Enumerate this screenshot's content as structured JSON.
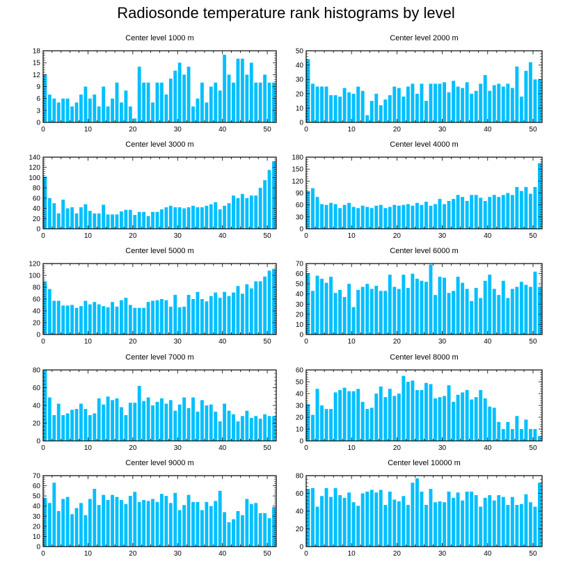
{
  "figure": {
    "title": "Radiosonde temperature rank histograms by level",
    "bar_color": "#00bfff"
  },
  "chart_data": [
    {
      "type": "bar",
      "title": "Center level 1000 m",
      "x": [
        0,
        1,
        2,
        3,
        4,
        5,
        6,
        7,
        8,
        9,
        10,
        11,
        12,
        13,
        14,
        15,
        16,
        17,
        18,
        19,
        20,
        21,
        22,
        23,
        24,
        25,
        26,
        27,
        28,
        29,
        30,
        31,
        32,
        33,
        34,
        35,
        36,
        37,
        38,
        39,
        40,
        41,
        42,
        43,
        44,
        45,
        46,
        47,
        48,
        49,
        50,
        51
      ],
      "values": [
        12,
        7,
        6,
        5,
        6,
        6,
        4,
        5,
        7,
        9,
        6,
        7,
        4,
        9,
        4,
        6,
        10,
        5,
        8,
        4,
        1,
        14,
        10,
        10,
        5,
        10,
        10,
        7,
        11,
        13,
        15,
        12,
        14,
        4,
        6,
        10,
        5,
        9,
        10,
        8,
        17,
        12,
        10,
        16,
        16,
        12,
        15,
        10,
        10,
        12,
        10,
        10
      ],
      "xlim": [
        0,
        52
      ],
      "ylim": [
        0,
        18
      ],
      "xticks": [
        0,
        10,
        20,
        30,
        40,
        50
      ],
      "yticks": [
        0,
        3,
        6,
        9,
        12,
        15,
        18
      ],
      "ytick_side": "left"
    },
    {
      "type": "bar",
      "title": "Center level 2000 m",
      "x": [
        0,
        1,
        2,
        3,
        4,
        5,
        6,
        7,
        8,
        9,
        10,
        11,
        12,
        13,
        14,
        15,
        16,
        17,
        18,
        19,
        20,
        21,
        22,
        23,
        24,
        25,
        26,
        27,
        28,
        29,
        30,
        31,
        32,
        33,
        34,
        35,
        36,
        37,
        38,
        39,
        40,
        41,
        42,
        43,
        44,
        45,
        46,
        47,
        48,
        49,
        50,
        51
      ],
      "values": [
        44,
        27,
        25,
        25,
        25,
        19,
        19,
        18,
        24,
        21,
        20,
        25,
        22,
        5,
        15,
        20,
        12,
        16,
        19,
        25,
        24,
        18,
        25,
        27,
        20,
        27,
        15,
        27,
        27,
        27,
        28,
        21,
        29,
        25,
        24,
        28,
        20,
        22,
        27,
        33,
        22,
        26,
        27,
        25,
        27,
        24,
        39,
        18,
        36,
        42,
        30,
        30
      ],
      "xlim": [
        0,
        52
      ],
      "ylim": [
        0,
        50
      ],
      "xticks": [
        0,
        10,
        20,
        30,
        40,
        50
      ],
      "yticks": [
        0,
        10,
        20,
        30,
        40,
        50
      ],
      "ytick_side": "left"
    },
    {
      "type": "bar",
      "title": "Center level 3000 m",
      "x": [
        0,
        1,
        2,
        3,
        4,
        5,
        6,
        7,
        8,
        9,
        10,
        11,
        12,
        13,
        14,
        15,
        16,
        17,
        18,
        19,
        20,
        21,
        22,
        23,
        24,
        25,
        26,
        27,
        28,
        29,
        30,
        31,
        32,
        33,
        34,
        35,
        36,
        37,
        38,
        39,
        40,
        41,
        42,
        43,
        44,
        45,
        46,
        47,
        48,
        49,
        50,
        51
      ],
      "values": [
        102,
        60,
        50,
        30,
        57,
        40,
        42,
        30,
        42,
        48,
        35,
        30,
        30,
        47,
        28,
        28,
        28,
        34,
        37,
        37,
        27,
        33,
        33,
        25,
        33,
        33,
        38,
        42,
        45,
        42,
        42,
        40,
        42,
        45,
        42,
        42,
        45,
        48,
        52,
        38,
        45,
        50,
        65,
        60,
        68,
        60,
        65,
        65,
        80,
        95,
        115,
        132
      ],
      "xlim": [
        0,
        52
      ],
      "ylim": [
        0,
        140
      ],
      "xticks": [
        0,
        10,
        20,
        30,
        40,
        50
      ],
      "yticks": [
        0,
        20,
        40,
        60,
        80,
        100,
        120,
        140
      ],
      "ytick_side": "left"
    },
    {
      "type": "bar",
      "title": "Center level 4000 m",
      "x": [
        0,
        1,
        2,
        3,
        4,
        5,
        6,
        7,
        8,
        9,
        10,
        11,
        12,
        13,
        14,
        15,
        16,
        17,
        18,
        19,
        20,
        21,
        22,
        23,
        24,
        25,
        26,
        27,
        28,
        29,
        30,
        31,
        32,
        33,
        34,
        35,
        36,
        37,
        38,
        39,
        40,
        41,
        42,
        43,
        44,
        45,
        46,
        47,
        48,
        49,
        50,
        51
      ],
      "values": [
        95,
        102,
        80,
        62,
        60,
        65,
        62,
        52,
        60,
        65,
        55,
        52,
        58,
        55,
        52,
        58,
        60,
        52,
        55,
        60,
        58,
        60,
        62,
        58,
        65,
        60,
        68,
        58,
        62,
        75,
        62,
        70,
        75,
        85,
        80,
        70,
        85,
        85,
        78,
        70,
        80,
        85,
        80,
        85,
        90,
        85,
        105,
        95,
        105,
        88,
        105,
        165
      ],
      "xlim": [
        0,
        52
      ],
      "ylim": [
        0,
        180
      ],
      "xticks": [
        0,
        10,
        20,
        30,
        40,
        50
      ],
      "yticks": [
        0,
        30,
        60,
        90,
        120,
        150,
        180
      ],
      "ytick_side": "left"
    },
    {
      "type": "bar",
      "title": "Center level 5000 m",
      "x": [
        0,
        1,
        2,
        3,
        4,
        5,
        6,
        7,
        8,
        9,
        10,
        11,
        12,
        13,
        14,
        15,
        16,
        17,
        18,
        19,
        20,
        21,
        22,
        23,
        24,
        25,
        26,
        27,
        28,
        29,
        30,
        31,
        32,
        33,
        34,
        35,
        36,
        37,
        38,
        39,
        40,
        41,
        42,
        43,
        44,
        45,
        46,
        47,
        48,
        49,
        50,
        51
      ],
      "values": [
        90,
        77,
        57,
        57,
        49,
        49,
        50,
        45,
        48,
        57,
        51,
        55,
        51,
        48,
        46,
        55,
        47,
        58,
        62,
        50,
        45,
        45,
        45,
        55,
        57,
        58,
        60,
        58,
        47,
        67,
        46,
        47,
        67,
        60,
        72,
        60,
        56,
        65,
        71,
        62,
        72,
        65,
        71,
        82,
        69,
        85,
        78,
        90,
        90,
        98,
        108,
        111
      ],
      "xlim": [
        0,
        52
      ],
      "ylim": [
        0,
        120
      ],
      "xticks": [
        0,
        10,
        20,
        30,
        40,
        50
      ],
      "yticks": [
        0,
        20,
        40,
        60,
        80,
        100,
        120
      ],
      "ytick_side": "left"
    },
    {
      "type": "bar",
      "title": "Center level 6000 m",
      "x": [
        0,
        1,
        2,
        3,
        4,
        5,
        6,
        7,
        8,
        9,
        10,
        11,
        12,
        13,
        14,
        15,
        16,
        17,
        18,
        19,
        20,
        21,
        22,
        23,
        24,
        25,
        26,
        27,
        28,
        29,
        30,
        31,
        32,
        33,
        34,
        35,
        36,
        37,
        38,
        39,
        40,
        41,
        42,
        43,
        44,
        45,
        46,
        47,
        48,
        49,
        50,
        51
      ],
      "values": [
        60,
        43,
        58,
        55,
        51,
        57,
        41,
        44,
        37,
        50,
        27,
        44,
        47,
        50,
        45,
        48,
        43,
        43,
        59,
        47,
        45,
        59,
        46,
        60,
        55,
        53,
        52,
        69,
        39,
        57,
        56,
        41,
        43,
        57,
        51,
        45,
        33,
        46,
        36,
        53,
        59,
        45,
        39,
        53,
        36,
        45,
        47,
        52,
        49,
        47,
        62,
        47
      ],
      "xlim": [
        0,
        52
      ],
      "ylim": [
        0,
        70
      ],
      "xticks": [
        0,
        10,
        20,
        30,
        40,
        50
      ],
      "yticks": [
        0,
        10,
        20,
        30,
        40,
        50,
        60,
        70
      ],
      "ytick_side": "left"
    },
    {
      "type": "bar",
      "title": "Center level 7000 m",
      "x": [
        0,
        1,
        2,
        3,
        4,
        5,
        6,
        7,
        8,
        9,
        10,
        11,
        12,
        13,
        14,
        15,
        16,
        17,
        18,
        19,
        20,
        21,
        22,
        23,
        24,
        25,
        26,
        27,
        28,
        29,
        30,
        31,
        32,
        33,
        34,
        35,
        36,
        37,
        38,
        39,
        40,
        41,
        42,
        43,
        44,
        45,
        46,
        47,
        48,
        49,
        50,
        51
      ],
      "values": [
        80,
        49,
        29,
        42,
        29,
        31,
        35,
        36,
        42,
        36,
        29,
        31,
        48,
        41,
        50,
        46,
        48,
        38,
        29,
        43,
        43,
        62,
        45,
        49,
        40,
        44,
        48,
        42,
        46,
        34,
        41,
        49,
        37,
        49,
        33,
        46,
        40,
        41,
        33,
        22,
        42,
        34,
        30,
        22,
        28,
        34,
        26,
        28,
        25,
        30,
        28,
        28
      ],
      "xlim": [
        0,
        52
      ],
      "ylim": [
        0,
        80
      ],
      "xticks": [
        0,
        10,
        20,
        30,
        40,
        50
      ],
      "yticks": [
        0,
        20,
        40,
        60,
        80
      ],
      "ytick_side": "left"
    },
    {
      "type": "bar",
      "title": "Center level 8000 m",
      "x": [
        0,
        1,
        2,
        3,
        4,
        5,
        6,
        7,
        8,
        9,
        10,
        11,
        12,
        13,
        14,
        15,
        16,
        17,
        18,
        19,
        20,
        21,
        22,
        23,
        24,
        25,
        26,
        27,
        28,
        29,
        30,
        31,
        32,
        33,
        34,
        35,
        36,
        37,
        38,
        39,
        40,
        41,
        42,
        43,
        44,
        45,
        46,
        47,
        48,
        49,
        50,
        51
      ],
      "values": [
        31,
        22,
        44,
        30,
        27,
        27,
        41,
        43,
        45,
        42,
        42,
        44,
        33,
        27,
        28,
        40,
        46,
        37,
        44,
        38,
        40,
        55,
        50,
        51,
        43,
        43,
        49,
        48,
        36,
        37,
        38,
        47,
        33,
        39,
        41,
        43,
        35,
        37,
        43,
        36,
        29,
        28,
        16,
        10,
        16,
        10,
        21,
        10,
        18,
        10,
        10,
        4
      ],
      "xlim": [
        0,
        52
      ],
      "ylim": [
        0,
        60
      ],
      "xticks": [
        0,
        10,
        20,
        30,
        40,
        50
      ],
      "yticks": [
        0,
        10,
        20,
        30,
        40,
        50,
        60
      ],
      "ytick_side": "left"
    },
    {
      "type": "bar",
      "title": "Center level 9000 m",
      "x": [
        0,
        1,
        2,
        3,
        4,
        5,
        6,
        7,
        8,
        9,
        10,
        11,
        12,
        13,
        14,
        15,
        16,
        17,
        18,
        19,
        20,
        21,
        22,
        23,
        24,
        25,
        26,
        27,
        28,
        29,
        30,
        31,
        32,
        33,
        34,
        35,
        36,
        37,
        38,
        39,
        40,
        41,
        42,
        43,
        44,
        45,
        46,
        47,
        48,
        49,
        50,
        51
      ],
      "values": [
        48,
        43,
        63,
        35,
        47,
        49,
        32,
        38,
        43,
        31,
        47,
        57,
        41,
        51,
        46,
        51,
        49,
        46,
        42,
        50,
        54,
        44,
        46,
        45,
        47,
        44,
        52,
        50,
        43,
        53,
        36,
        41,
        51,
        44,
        44,
        36,
        44,
        40,
        45,
        55,
        34,
        24,
        27,
        35,
        31,
        47,
        42,
        43,
        33,
        33,
        28,
        39
      ],
      "xlim": [
        0,
        52
      ],
      "ylim": [
        0,
        70
      ],
      "xticks": [
        0,
        10,
        20,
        30,
        40,
        50
      ],
      "yticks": [
        0,
        10,
        20,
        30,
        40,
        50,
        60,
        70
      ],
      "ytick_side": "left"
    },
    {
      "type": "bar",
      "title": "Center level 10000 m",
      "x": [
        0,
        1,
        2,
        3,
        4,
        5,
        6,
        7,
        8,
        9,
        10,
        11,
        12,
        13,
        14,
        15,
        16,
        17,
        18,
        19,
        20,
        21,
        22,
        23,
        24,
        25,
        26,
        27,
        28,
        29,
        30,
        31,
        32,
        33,
        34,
        35,
        36,
        37,
        38,
        39,
        40,
        41,
        42,
        43,
        44,
        45,
        46,
        47,
        48,
        49,
        50,
        51
      ],
      "values": [
        65,
        66,
        45,
        57,
        66,
        56,
        66,
        58,
        55,
        61,
        50,
        46,
        60,
        62,
        64,
        61,
        64,
        47,
        62,
        53,
        51,
        57,
        47,
        72,
        77,
        62,
        47,
        65,
        50,
        51,
        50,
        62,
        55,
        61,
        52,
        62,
        62,
        58,
        45,
        55,
        58,
        52,
        58,
        56,
        47,
        56,
        47,
        48,
        59,
        50,
        45,
        72
      ],
      "xlim": [
        0,
        52
      ],
      "ylim": [
        0,
        80
      ],
      "xticks": [
        0,
        10,
        20,
        30,
        40,
        50
      ],
      "yticks": [
        0,
        20,
        40,
        60,
        80
      ],
      "ytick_side": "left"
    }
  ]
}
